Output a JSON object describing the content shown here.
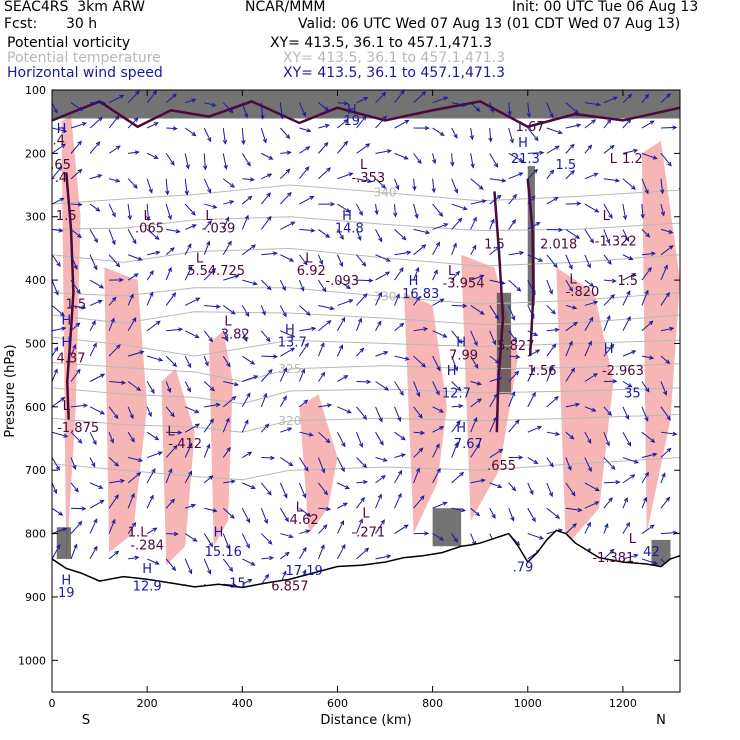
{
  "header": {
    "model": "SEAC4RS  3km ARW",
    "org": "NCAR/MMM",
    "init": "Init: 00 UTC Tue 06 Aug 13",
    "fcst_label": "Fcst:",
    "fcst_value": "30 h",
    "valid": "Valid: 06 UTC Wed 07 Aug 13 (01 CDT Wed 07 Aug 13)",
    "legend": [
      {
        "name": "Potential vorticity",
        "xy": "XY= 413.5, 36.1 to 457.1,471.3",
        "color": "#000000"
      },
      {
        "name": "Potential temperature",
        "xy": "XY= 413.5, 36.1 to 457.1,471.3",
        "color": "#b8b8b8"
      },
      {
        "name": "Horizontal wind speed",
        "xy": "XY= 413.5, 36.1 to 457.1,471.3",
        "color": "#1a1aa0"
      }
    ]
  },
  "chart_data": {
    "type": "cross-section",
    "xlabel": "Distance (km)",
    "ylabel": "Pressure (hPa)",
    "xlim": [
      0,
      1320
    ],
    "ylim": [
      1050,
      100
    ],
    "x_ticks": [
      0,
      200,
      400,
      600,
      800,
      1000,
      1200
    ],
    "y_ticks": [
      100,
      200,
      300,
      400,
      500,
      600,
      700,
      800,
      900,
      1000
    ],
    "endpoints": {
      "left": "S",
      "right": "N"
    },
    "colors": {
      "pv_fill": "#f7b6b6",
      "pv_contour": "#4a0a3a",
      "theta": "#b8b8b8",
      "wind": "#1a1aa0",
      "terrain": "#000000",
      "shade": "#444444"
    },
    "terrain_profile": {
      "x": [
        0,
        30,
        60,
        100,
        150,
        200,
        250,
        300,
        350,
        400,
        450,
        500,
        550,
        600,
        650,
        700,
        740,
        780,
        820,
        860,
        880,
        900,
        920,
        940,
        960,
        980,
        1000,
        1020,
        1040,
        1060,
        1080,
        1100,
        1150,
        1200,
        1250,
        1280,
        1300,
        1320
      ],
      "p": [
        840,
        855,
        862,
        875,
        868,
        872,
        878,
        884,
        880,
        885,
        878,
        872,
        862,
        852,
        850,
        845,
        838,
        835,
        830,
        820,
        818,
        815,
        810,
        805,
        800,
        820,
        845,
        830,
        810,
        795,
        800,
        815,
        838,
        845,
        848,
        852,
        840,
        835
      ]
    },
    "theta_isolines": [
      {
        "label": "340",
        "x": [
          0,
          150,
          300,
          500,
          700,
          900,
          1100,
          1320
        ],
        "p": [
          280,
          272,
          265,
          250,
          262,
          275,
          268,
          258
        ]
      },
      {
        "label": "",
        "x": [
          0,
          150,
          300,
          500,
          700,
          900,
          1100,
          1320
        ],
        "p": [
          320,
          318,
          305,
          300,
          312,
          322,
          320,
          310
        ]
      },
      {
        "label": "",
        "x": [
          0,
          150,
          300,
          500,
          700,
          900,
          1100,
          1320
        ],
        "p": [
          360,
          372,
          355,
          350,
          365,
          378,
          372,
          360
        ]
      },
      {
        "label": "330",
        "x": [
          0,
          150,
          300,
          500,
          700,
          900,
          1100,
          1320
        ],
        "p": [
          420,
          425,
          412,
          412,
          426,
          438,
          432,
          420
        ]
      },
      {
        "label": "",
        "x": [
          0,
          150,
          300,
          500,
          700,
          900,
          1100,
          1320
        ],
        "p": [
          455,
          468,
          450,
          452,
          460,
          470,
          468,
          455
        ]
      },
      {
        "label": "",
        "x": [
          0,
          150,
          300,
          500,
          700,
          900,
          1100,
          1320
        ],
        "p": [
          490,
          502,
          520,
          495,
          500,
          505,
          500,
          495
        ]
      },
      {
        "label": "325",
        "x": [
          0,
          150,
          300,
          400,
          500,
          700,
          900,
          1100,
          1320
        ],
        "p": [
          530,
          538,
          545,
          560,
          540,
          535,
          540,
          538,
          532
        ]
      },
      {
        "label": "",
        "x": [
          0,
          150,
          300,
          400,
          500,
          700,
          900,
          1100,
          1320
        ],
        "p": [
          570,
          580,
          585,
          595,
          575,
          572,
          578,
          575,
          570
        ]
      },
      {
        "label": "320",
        "x": [
          0,
          150,
          300,
          400,
          500,
          700,
          900,
          1100,
          1320
        ],
        "p": [
          618,
          628,
          632,
          640,
          622,
          618,
          622,
          618,
          612
        ]
      },
      {
        "label": "",
        "x": [
          0,
          150,
          300,
          400,
          500,
          700,
          900,
          1100,
          1320
        ],
        "p": [
          690,
          700,
          710,
          715,
          700,
          695,
          700,
          690,
          680
        ]
      }
    ],
    "pv_fill_regions": [
      {
        "x": [
          20,
          40,
          60,
          50,
          30
        ],
        "p": [
          150,
          140,
          300,
          600,
          850
        ]
      },
      {
        "x": [
          110,
          180,
          200,
          170,
          120
        ],
        "p": [
          380,
          400,
          600,
          800,
          830
        ]
      },
      {
        "x": [
          230,
          260,
          300,
          280,
          240
        ],
        "p": [
          560,
          540,
          640,
          820,
          850
        ]
      },
      {
        "x": [
          330,
          360,
          380,
          370,
          340
        ],
        "p": [
          500,
          480,
          560,
          780,
          820
        ]
      },
      {
        "x": [
          520,
          560,
          600,
          580,
          540
        ],
        "p": [
          600,
          580,
          680,
          760,
          800
        ]
      },
      {
        "x": [
          740,
          800,
          830,
          810,
          760
        ],
        "p": [
          420,
          440,
          600,
          720,
          800
        ]
      },
      {
        "x": [
          860,
          930,
          980,
          940,
          880
        ],
        "p": [
          360,
          380,
          520,
          700,
          780
        ]
      },
      {
        "x": [
          1060,
          1140,
          1180,
          1150,
          1080
        ],
        "p": [
          380,
          420,
          560,
          760,
          820
        ]
      },
      {
        "x": [
          1240,
          1280,
          1320,
          1300,
          1250
        ],
        "p": [
          200,
          180,
          400,
          620,
          800
        ]
      }
    ],
    "pv_contour_lines": [
      {
        "x": [
          0,
          100,
          180,
          250,
          330,
          420,
          520,
          600,
          700,
          800,
          900,
          1000,
          1100,
          1200,
          1320
        ],
        "p": [
          148,
          118,
          158,
          132,
          142,
          118,
          152,
          128,
          148,
          132,
          118,
          158,
          138,
          148,
          128
        ]
      },
      {
        "x": [
          30,
          40,
          45,
          38,
          32,
          35
        ],
        "p": [
          230,
          320,
          420,
          500,
          560,
          620
        ]
      },
      {
        "x": [
          930,
          940,
          948,
          938,
          935
        ],
        "p": [
          260,
          360,
          460,
          560,
          640
        ]
      },
      {
        "x": [
          1000,
          1010,
          1012,
          1005
        ],
        "p": [
          240,
          320,
          420,
          520
        ]
      }
    ],
    "dark_shading": [
      {
        "x0": 0,
        "x1": 1320,
        "p0": 100,
        "p1": 145
      },
      {
        "x0": 935,
        "x1": 965,
        "p0": 420,
        "p1": 580
      },
      {
        "x0": 1000,
        "x1": 1015,
        "p0": 220,
        "p1": 440
      },
      {
        "x0": 800,
        "x1": 860,
        "p0": 760,
        "p1": 820
      },
      {
        "x0": 1260,
        "x1": 1300,
        "p0": 810,
        "p1": 850
      },
      {
        "x0": 10,
        "x1": 40,
        "p0": 790,
        "p1": 840
      }
    ],
    "annotations": [
      {
        "text": "H",
        "x": 20,
        "p": 168,
        "color": "#1a1aa0"
      },
      {
        "text": ".4",
        "x": 14,
        "p": 186,
        "color": "#4a0a3a"
      },
      {
        "text": ".65",
        "x": 18,
        "p": 225,
        "color": "#4a0a3a"
      },
      {
        "text": "-.4",
        "x": 14,
        "p": 245,
        "color": "#4a0a3a"
      },
      {
        "text": "1.5",
        "x": 30,
        "p": 305,
        "color": "#4a0a3a"
      },
      {
        "text": "L",
        "x": 200,
        "p": 305,
        "color": "#4a0a3a"
      },
      {
        "text": ".065",
        "x": 205,
        "p": 325,
        "color": "#4a0a3a"
      },
      {
        "text": "L",
        "x": 330,
        "p": 305,
        "color": "#4a0a3a"
      },
      {
        "text": "-.039",
        "x": 350,
        "p": 325,
        "color": "#4a0a3a"
      },
      {
        "text": "L",
        "x": 655,
        "p": 225,
        "color": "#4a0a3a"
      },
      {
        "text": "-.353",
        "x": 665,
        "p": 245,
        "color": "#4a0a3a"
      },
      {
        "text": "H",
        "x": 620,
        "p": 305,
        "color": "#1a1aa0"
      },
      {
        "text": "14.8",
        "x": 625,
        "p": 325,
        "color": "#1a1aa0"
      },
      {
        "text": "L",
        "x": 310,
        "p": 372,
        "color": "#4a0a3a"
      },
      {
        "text": "5.54.725",
        "x": 345,
        "p": 392,
        "color": "#4a0a3a"
      },
      {
        "text": "L",
        "x": 540,
        "p": 372,
        "color": "#4a0a3a"
      },
      {
        "text": "6.92",
        "x": 545,
        "p": 392,
        "color": "#4a0a3a"
      },
      {
        "text": "-.093",
        "x": 610,
        "p": 408,
        "color": "#4a0a3a"
      },
      {
        "text": "H",
        "x": 760,
        "p": 408,
        "color": "#1a1aa0"
      },
      {
        "text": "16.83",
        "x": 775,
        "p": 428,
        "color": "#1a1aa0"
      },
      {
        "text": "L",
        "x": 840,
        "p": 392,
        "color": "#4a0a3a"
      },
      {
        "text": "-3.954",
        "x": 865,
        "p": 412,
        "color": "#4a0a3a"
      },
      {
        "text": "1.5",
        "x": 930,
        "p": 350,
        "color": "#4a0a3a"
      },
      {
        "text": "2.018",
        "x": 1065,
        "p": 350,
        "color": "#4a0a3a"
      },
      {
        "text": "L",
        "x": 1165,
        "p": 305,
        "color": "#4a0a3a"
      },
      {
        "text": "-1.322",
        "x": 1185,
        "p": 345,
        "color": "#4a0a3a"
      },
      {
        "text": "L",
        "x": 1095,
        "p": 405,
        "color": "#4a0a3a"
      },
      {
        "text": "-.820",
        "x": 1115,
        "p": 425,
        "color": "#4a0a3a"
      },
      {
        "text": "1.5",
        "x": 1210,
        "p": 408,
        "color": "#4a0a3a"
      },
      {
        "text": "1.5",
        "x": 50,
        "p": 445,
        "color": "#4a0a3a"
      },
      {
        "text": "H",
        "x": 30,
        "p": 470,
        "color": "#1a1aa0"
      },
      {
        "text": "H",
        "x": 30,
        "p": 505,
        "color": "#1a1aa0"
      },
      {
        "text": "4.37",
        "x": 40,
        "p": 530,
        "color": "#4a0a3a"
      },
      {
        "text": "L",
        "x": 370,
        "p": 472,
        "color": "#4a0a3a"
      },
      {
        "text": "3.82",
        "x": 385,
        "p": 492,
        "color": "#4a0a3a"
      },
      {
        "text": "H",
        "x": 500,
        "p": 485,
        "color": "#1a1aa0"
      },
      {
        "text": "13.7",
        "x": 505,
        "p": 505,
        "color": "#1a1aa0"
      },
      {
        "text": "H",
        "x": 860,
        "p": 505,
        "color": "#1a1aa0"
      },
      {
        "text": "7.99",
        "x": 865,
        "p": 525,
        "color": "#4a0a3a"
      },
      {
        "text": "5.827",
        "x": 975,
        "p": 510,
        "color": "#4a0a3a"
      },
      {
        "text": "1.56",
        "x": 1030,
        "p": 550,
        "color": "#4a0a3a"
      },
      {
        "text": "H",
        "x": 1170,
        "p": 515,
        "color": "#1a1aa0"
      },
      {
        "text": "-2.963",
        "x": 1200,
        "p": 550,
        "color": "#4a0a3a"
      },
      {
        "text": "H",
        "x": 840,
        "p": 550,
        "color": "#1a1aa0"
      },
      {
        "text": "12.7",
        "x": 850,
        "p": 585,
        "color": "#1a1aa0"
      },
      {
        "text": "35",
        "x": 1220,
        "p": 585,
        "color": "#1a1aa0"
      },
      {
        "text": "L",
        "x": 30,
        "p": 605,
        "color": "#4a0a3a"
      },
      {
        "text": "-1.875",
        "x": 55,
        "p": 640,
        "color": "#4a0a3a"
      },
      {
        "text": "L",
        "x": 250,
        "p": 645,
        "color": "#4a0a3a"
      },
      {
        "text": "-.412",
        "x": 280,
        "p": 665,
        "color": "#4a0a3a"
      },
      {
        "text": "H",
        "x": 860,
        "p": 640,
        "color": "#1a1aa0"
      },
      {
        "text": "7.67",
        "x": 875,
        "p": 665,
        "color": "#1a1aa0"
      },
      {
        "text": ".655",
        "x": 945,
        "p": 700,
        "color": "#4a0a3a"
      },
      {
        "text": "L",
        "x": 520,
        "p": 765,
        "color": "#4a0a3a"
      },
      {
        "text": "4.62",
        "x": 530,
        "p": 785,
        "color": "#4a0a3a"
      },
      {
        "text": "L",
        "x": 660,
        "p": 775,
        "color": "#4a0a3a"
      },
      {
        "text": "-.271",
        "x": 665,
        "p": 805,
        "color": "#4a0a3a"
      },
      {
        "text": "1.L",
        "x": 180,
        "p": 805,
        "color": "#4a0a3a"
      },
      {
        "text": "-.284",
        "x": 200,
        "p": 825,
        "color": "#4a0a3a"
      },
      {
        "text": "H",
        "x": 350,
        "p": 805,
        "color": "#1a1aa0"
      },
      {
        "text": "15.16",
        "x": 360,
        "p": 835,
        "color": "#1a1aa0"
      },
      {
        "text": "L",
        "x": 1220,
        "p": 815,
        "color": "#4a0a3a"
      },
      {
        "text": "-1.381",
        "x": 1180,
        "p": 845,
        "color": "#4a0a3a"
      },
      {
        "text": "42",
        "x": 1260,
        "p": 835,
        "color": "#1a1aa0"
      },
      {
        "text": ".79",
        "x": 990,
        "p": 860,
        "color": "#1a1aa0"
      },
      {
        "text": "H",
        "x": 200,
        "p": 862,
        "color": "#1a1aa0"
      },
      {
        "text": "12.9",
        "x": 200,
        "p": 890,
        "color": "#1a1aa0"
      },
      {
        "text": "17.19",
        "x": 530,
        "p": 865,
        "color": "#1a1aa0"
      },
      {
        "text": "6.857",
        "x": 500,
        "p": 890,
        "color": "#4a0a3a"
      },
      {
        "text": "15",
        "x": 390,
        "p": 885,
        "color": "#1a1aa0"
      },
      {
        "text": "H",
        "x": 30,
        "p": 880,
        "color": "#1a1aa0"
      },
      {
        "text": "19",
        "x": 30,
        "p": 900,
        "color": "#1a1aa0"
      },
      {
        "text": "1.5",
        "x": 1080,
        "p": 225,
        "color": "#1a1aa0"
      },
      {
        "text": "H",
        "x": 990,
        "p": 190,
        "color": "#1a1aa0"
      },
      {
        "text": "21.3",
        "x": 995,
        "p": 215,
        "color": "#1a1aa0"
      },
      {
        "text": "1.67",
        "x": 1005,
        "p": 165,
        "color": "#4a0a3a"
      },
      {
        "text": "19",
        "x": 630,
        "p": 155,
        "color": "#1a1aa0"
      },
      {
        "text": "H",
        "x": 630,
        "p": 138,
        "color": "#1a1aa0"
      },
      {
        "text": "1.2",
        "x": 1220,
        "p": 215,
        "color": "#4a0a3a"
      },
      {
        "text": "L",
        "x": 1180,
        "p": 215,
        "color": "#4a0a3a"
      }
    ]
  }
}
